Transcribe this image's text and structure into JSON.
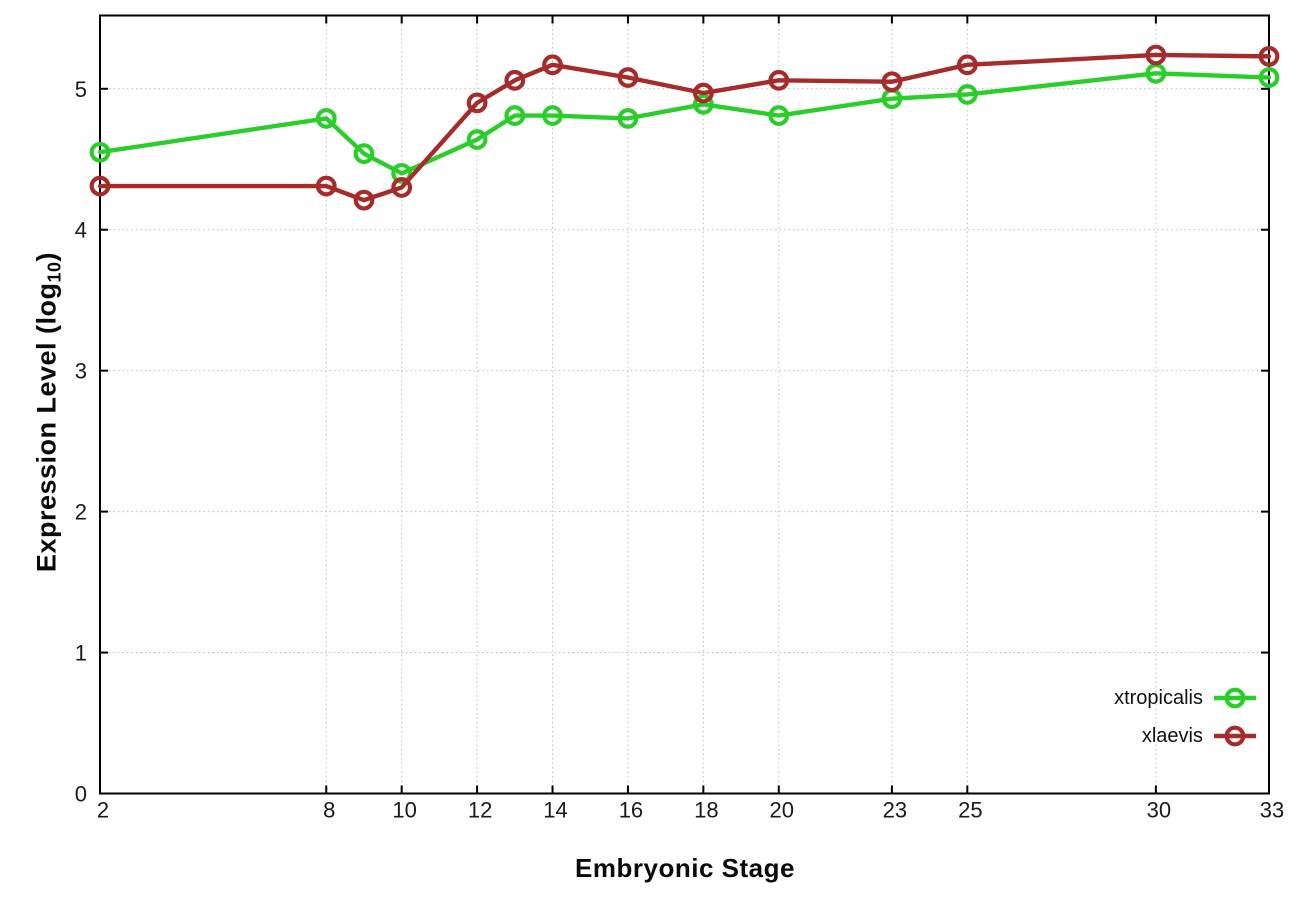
{
  "chart_data": {
    "type": "line",
    "title": "",
    "xlabel": "Embryonic Stage",
    "ylabel": "Expression Level (log10)",
    "ylabel_parts": {
      "prefix": "Expression Level (log",
      "subscript": "10",
      "suffix": ")"
    },
    "x": [
      2,
      8,
      9,
      10,
      12,
      13,
      14,
      16,
      18,
      20,
      23,
      25,
      30,
      33
    ],
    "xtick_labels": [
      "2",
      "8",
      "10",
      "12",
      "14",
      "16",
      "18",
      "20",
      "23",
      "25",
      "30",
      "33"
    ],
    "xticks": [
      2,
      8,
      10,
      12,
      14,
      16,
      18,
      20,
      23,
      25,
      30,
      33
    ],
    "ytick_labels": [
      "0",
      "1",
      "2",
      "3",
      "4",
      "5"
    ],
    "yticks": [
      0,
      1,
      2,
      3,
      4,
      5
    ],
    "xlim": [
      2,
      33
    ],
    "ylim": [
      0,
      5.52
    ],
    "grid": true,
    "marker": "open-circle",
    "legend_position": "inside-bottom-right",
    "axis_color": "#000000",
    "grid_color": "#bdbdbd",
    "tick_label_color": "#1a1a1a",
    "series": [
      {
        "name": "xtropicalis",
        "color": "#2bcd2b",
        "values": [
          4.55,
          4.79,
          4.54,
          4.4,
          4.64,
          4.81,
          4.81,
          4.79,
          4.89,
          4.81,
          4.93,
          4.96,
          5.11,
          5.08
        ]
      },
      {
        "name": "xlaevis",
        "color": "#a62c2c",
        "values": [
          4.31,
          4.31,
          4.21,
          4.3,
          4.9,
          5.06,
          5.17,
          5.08,
          4.97,
          5.06,
          5.05,
          5.17,
          5.24,
          5.23
        ]
      }
    ]
  }
}
